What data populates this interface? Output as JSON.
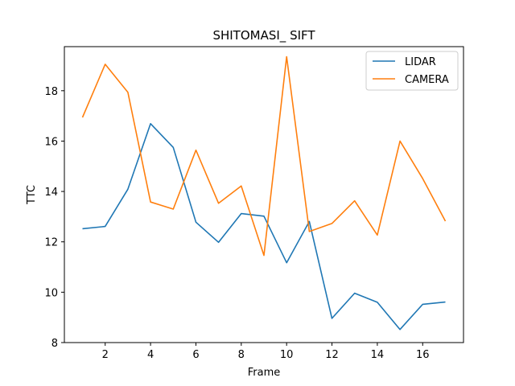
{
  "chart_data": {
    "type": "line",
    "title": "SHITOMASI_ SIFT",
    "xlabel": "Frame",
    "ylabel": "TTC",
    "xlim": [
      0.2,
      17.8
    ],
    "ylim": [
      8,
      19.75
    ],
    "xticks": [
      2,
      4,
      6,
      8,
      10,
      12,
      14,
      16
    ],
    "yticks": [
      8,
      10,
      12,
      14,
      16,
      18
    ],
    "grid": false,
    "legend_position": "upper-right",
    "x": [
      1,
      2,
      3,
      4,
      5,
      6,
      7,
      8,
      9,
      10,
      11,
      12,
      13,
      14,
      15,
      16,
      17
    ],
    "series": [
      {
        "name": "LIDAR",
        "color": "#1f77b4",
        "values": [
          12.52,
          12.61,
          14.09,
          16.69,
          15.75,
          12.78,
          11.98,
          13.12,
          13.02,
          11.17,
          12.81,
          8.96,
          9.96,
          9.6,
          8.52,
          9.52,
          9.61
        ]
      },
      {
        "name": "CAMERA",
        "color": "#ff7f0e",
        "values": [
          16.94,
          19.05,
          17.94,
          13.58,
          13.3,
          15.64,
          13.53,
          14.22,
          11.46,
          19.35,
          12.41,
          12.73,
          13.63,
          12.27,
          16.0,
          14.51,
          12.82
        ]
      }
    ]
  }
}
